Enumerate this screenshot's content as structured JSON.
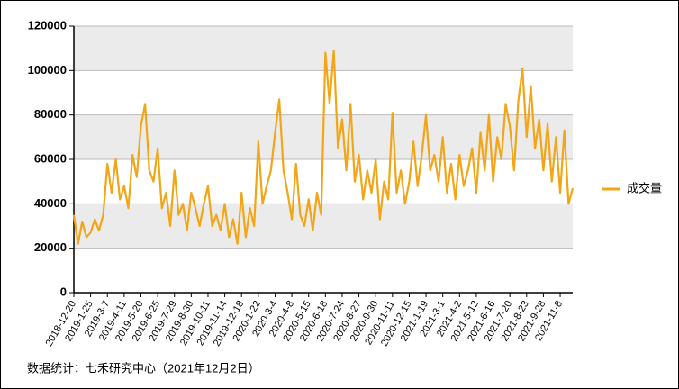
{
  "chart_data": {
    "type": "line",
    "categories": [
      "2018-12-20",
      null,
      null,
      null,
      "2019-1-25",
      null,
      null,
      null,
      "2019-3-7",
      null,
      null,
      null,
      "2019-4-11",
      null,
      null,
      null,
      "2019-5-20",
      null,
      null,
      null,
      "2019-6-25",
      null,
      null,
      null,
      "2019-7-29",
      null,
      null,
      null,
      "2019-8-30",
      null,
      null,
      null,
      "2019-10-11",
      null,
      null,
      null,
      "2019-11-14",
      null,
      null,
      null,
      "2019-12-18",
      null,
      null,
      null,
      "2020-1-22",
      null,
      null,
      null,
      "2020-3-4",
      null,
      null,
      null,
      "2020-4-8",
      null,
      null,
      null,
      "2020-5-15",
      null,
      null,
      null,
      "2020-6-18",
      null,
      null,
      null,
      "2020-7-24",
      null,
      null,
      null,
      "2020-8-27",
      null,
      null,
      null,
      "2020-9-30",
      null,
      null,
      null,
      "2020-11-11",
      null,
      null,
      null,
      "2020-12-15",
      null,
      null,
      null,
      "2021-1-19",
      null,
      null,
      null,
      "2021-3-1",
      null,
      null,
      null,
      "2021-4-2",
      null,
      null,
      null,
      "2021-5-12",
      null,
      null,
      null,
      "2021-6-16",
      null,
      null,
      null,
      "2021-7-20",
      null,
      null,
      null,
      "2021-8-23",
      null,
      null,
      null,
      "2021-9-28",
      null,
      null,
      null,
      "2021-11-8",
      null,
      null,
      null
    ],
    "series": [
      {
        "name": "成交量",
        "color": "#f2a516",
        "values": [
          35000,
          22000,
          32000,
          25000,
          27000,
          33000,
          28000,
          35000,
          58000,
          45000,
          60000,
          42000,
          48000,
          38000,
          62000,
          52000,
          75000,
          85000,
          55000,
          50000,
          65000,
          38000,
          45000,
          30000,
          55000,
          35000,
          40000,
          28000,
          45000,
          38000,
          30000,
          40000,
          48000,
          30000,
          35000,
          28000,
          40000,
          25000,
          33000,
          22000,
          45000,
          25000,
          38000,
          30000,
          68000,
          40000,
          48000,
          55000,
          72000,
          87000,
          55000,
          45000,
          33000,
          58000,
          35000,
          30000,
          42000,
          28000,
          45000,
          35000,
          108000,
          85000,
          109000,
          65000,
          78000,
          55000,
          85000,
          50000,
          62000,
          42000,
          55000,
          45000,
          60000,
          33000,
          50000,
          42000,
          81000,
          45000,
          55000,
          40000,
          50000,
          68000,
          48000,
          62000,
          80000,
          55000,
          62000,
          50000,
          70000,
          45000,
          58000,
          42000,
          62000,
          48000,
          55000,
          65000,
          45000,
          72000,
          55000,
          80000,
          50000,
          70000,
          60000,
          85000,
          75000,
          55000,
          86000,
          101000,
          70000,
          93000,
          65000,
          78000,
          55000,
          76000,
          50000,
          70000,
          45000,
          73000,
          40000,
          47000
        ]
      }
    ],
    "ylim": [
      0,
      120000
    ],
    "yticks": [
      0,
      20000,
      40000,
      60000,
      80000,
      100000,
      120000
    ],
    "grid": true,
    "legend": "right",
    "note": "数据统计：七禾研究中心（2021年12月2日）"
  }
}
